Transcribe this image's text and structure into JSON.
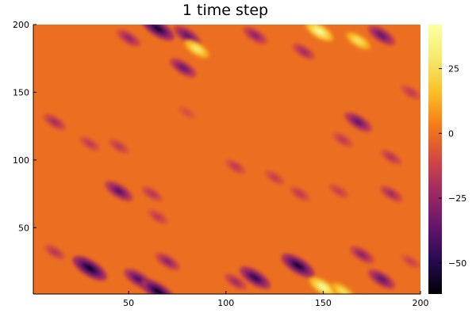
{
  "chart_data": {
    "type": "heatmap",
    "title": "1 time step",
    "xlabel": "",
    "ylabel": "",
    "xlim": [
      1,
      200
    ],
    "ylim": [
      1,
      200
    ],
    "x_ticks": [
      {
        "value": 50,
        "label": "50"
      },
      {
        "value": 100,
        "label": "100"
      },
      {
        "value": 150,
        "label": "150"
      },
      {
        "value": 200,
        "label": "200"
      }
    ],
    "y_ticks": [
      {
        "value": 50,
        "label": "50"
      },
      {
        "value": 100,
        "label": "100"
      },
      {
        "value": 150,
        "label": "150"
      },
      {
        "value": 200,
        "label": "200"
      }
    ],
    "colorbar": {
      "colormap": "inferno",
      "range": [
        -62,
        42
      ],
      "ticks": [
        {
          "value": 25,
          "label": "25"
        },
        {
          "value": 0,
          "label": "0"
        },
        {
          "value": -25,
          "label": "−25"
        },
        {
          "value": -50,
          "label": "−50"
        }
      ]
    },
    "background_value": 0,
    "features": [
      {
        "x": 65,
        "y": 197,
        "value": -58
      },
      {
        "x": 80,
        "y": 192,
        "value": -40
      },
      {
        "x": 50,
        "y": 190,
        "value": -28
      },
      {
        "x": 85,
        "y": 182,
        "value": 32
      },
      {
        "x": 78,
        "y": 168,
        "value": -38
      },
      {
        "x": 115,
        "y": 192,
        "value": -30
      },
      {
        "x": 148,
        "y": 195,
        "value": 40
      },
      {
        "x": 168,
        "y": 188,
        "value": 30
      },
      {
        "x": 180,
        "y": 192,
        "value": -40
      },
      {
        "x": 140,
        "y": 180,
        "value": -25
      },
      {
        "x": 195,
        "y": 150,
        "value": -18
      },
      {
        "x": 168,
        "y": 128,
        "value": -40
      },
      {
        "x": 160,
        "y": 115,
        "value": -18
      },
      {
        "x": 185,
        "y": 102,
        "value": -20
      },
      {
        "x": 12,
        "y": 128,
        "value": -24
      },
      {
        "x": 30,
        "y": 112,
        "value": -18
      },
      {
        "x": 45,
        "y": 110,
        "value": -18
      },
      {
        "x": 80,
        "y": 135,
        "value": -10
      },
      {
        "x": 45,
        "y": 77,
        "value": -42
      },
      {
        "x": 62,
        "y": 75,
        "value": -20
      },
      {
        "x": 105,
        "y": 95,
        "value": -18
      },
      {
        "x": 125,
        "y": 87,
        "value": -16
      },
      {
        "x": 138,
        "y": 75,
        "value": -18
      },
      {
        "x": 158,
        "y": 77,
        "value": -16
      },
      {
        "x": 185,
        "y": 75,
        "value": -25
      },
      {
        "x": 65,
        "y": 58,
        "value": -18
      },
      {
        "x": 12,
        "y": 32,
        "value": -20
      },
      {
        "x": 30,
        "y": 20,
        "value": -62
      },
      {
        "x": 55,
        "y": 12,
        "value": -45
      },
      {
        "x": 65,
        "y": 3,
        "value": -60
      },
      {
        "x": 70,
        "y": 25,
        "value": -30
      },
      {
        "x": 105,
        "y": 10,
        "value": -25
      },
      {
        "x": 115,
        "y": 13,
        "value": -52
      },
      {
        "x": 137,
        "y": 22,
        "value": -58
      },
      {
        "x": 150,
        "y": 6,
        "value": 40
      },
      {
        "x": 160,
        "y": 3,
        "value": 28
      },
      {
        "x": 180,
        "y": 12,
        "value": -40
      },
      {
        "x": 170,
        "y": 30,
        "value": -30
      },
      {
        "x": 195,
        "y": 25,
        "value": -15
      }
    ]
  }
}
